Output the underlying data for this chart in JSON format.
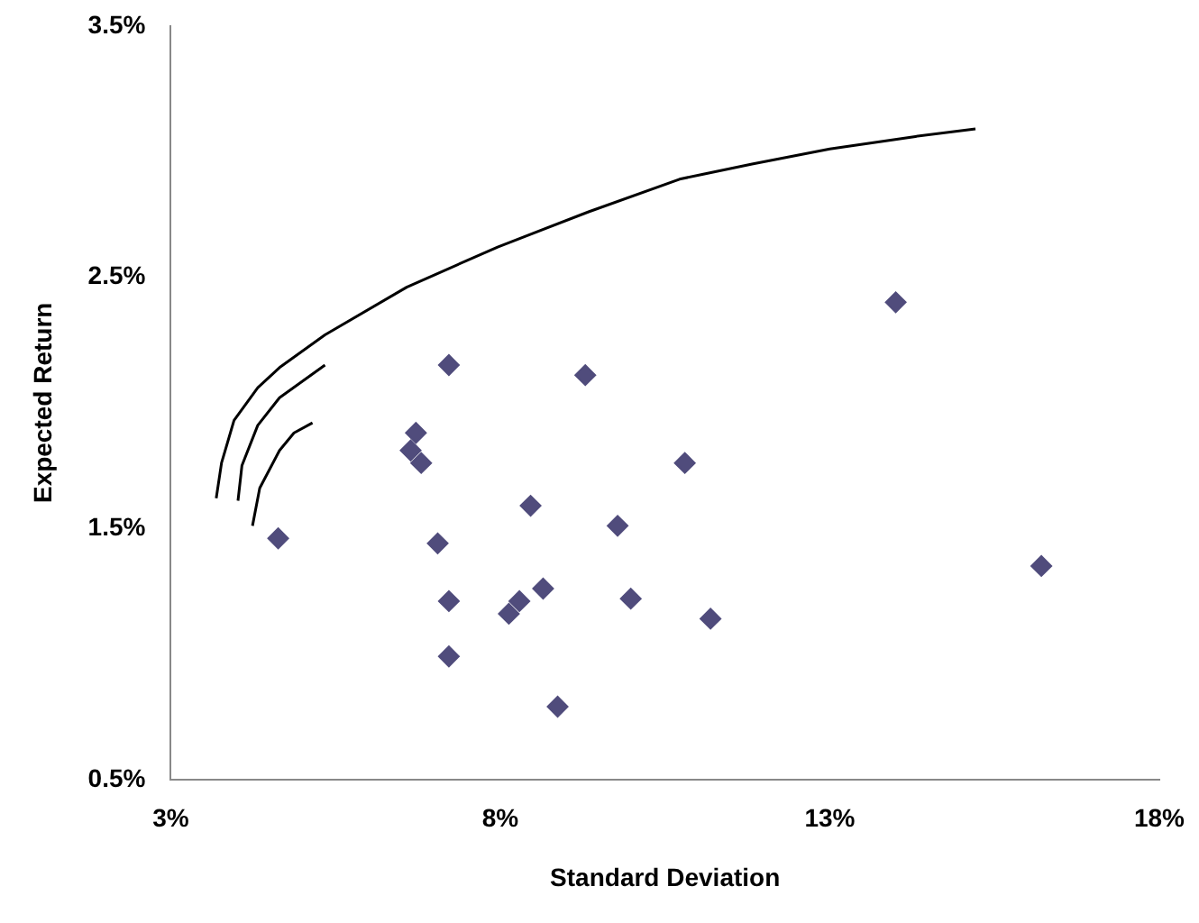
{
  "chart_data": {
    "type": "scatter",
    "xlabel": "Standard Deviation",
    "ylabel": "Expected Return",
    "xlim": [
      3,
      18
    ],
    "xticks": [
      {
        "value": 3,
        "label": "3%"
      },
      {
        "value": 8,
        "label": "8%"
      },
      {
        "value": 13,
        "label": "13%"
      },
      {
        "value": 18,
        "label": "18%"
      }
    ],
    "ylim": [
      0.5,
      3.5
    ],
    "yticks": [
      {
        "value": 0.5,
        "label": "0.5%"
      },
      {
        "value": 1.5,
        "label": "1.5%"
      },
      {
        "value": 2.5,
        "label": "2.5%"
      },
      {
        "value": 3.5,
        "label": "3.5%"
      }
    ],
    "grid": false,
    "legend": false,
    "marker": "diamond",
    "series": [
      {
        "color": "#504c7c",
        "x": [
          4.63,
          7.22,
          9.29,
          6.72,
          6.64,
          6.8,
          10.8,
          8.46,
          7.05,
          9.78,
          7.22,
          8.13,
          8.29,
          8.65,
          9.98,
          11.19,
          7.22,
          8.87,
          14.0,
          16.21
        ],
        "values": [
          1.46,
          2.15,
          2.11,
          1.88,
          1.81,
          1.76,
          1.76,
          1.59,
          1.44,
          1.51,
          1.21,
          1.16,
          1.21,
          1.26,
          1.22,
          1.14,
          0.99,
          0.79,
          2.4,
          1.35
        ]
      },
      {
        "type": "line",
        "color": "#000000",
        "marker": "none",
        "x": [
          3.69,
          3.77,
          3.96,
          4.32,
          4.65,
          5.34,
          6.58,
          7.96,
          9.34,
          10.72,
          11.08,
          11.82,
          13.0,
          14.3,
          15.21
        ],
        "values": [
          1.62,
          1.76,
          1.93,
          2.06,
          2.14,
          2.27,
          2.46,
          2.62,
          2.76,
          2.89,
          2.91,
          2.95,
          3.01,
          3.06,
          3.09
        ]
      },
      {
        "type": "line",
        "color": "#000000",
        "marker": "none",
        "x": [
          4.02,
          4.08,
          4.32,
          4.65,
          5.34
        ],
        "values": [
          1.61,
          1.75,
          1.91,
          2.02,
          2.15
        ]
      },
      {
        "type": "line",
        "color": "#000000",
        "marker": "none",
        "x": [
          4.24,
          4.35,
          4.65,
          4.87,
          5.15
        ],
        "values": [
          1.51,
          1.66,
          1.81,
          1.88,
          1.92
        ]
      }
    ]
  }
}
